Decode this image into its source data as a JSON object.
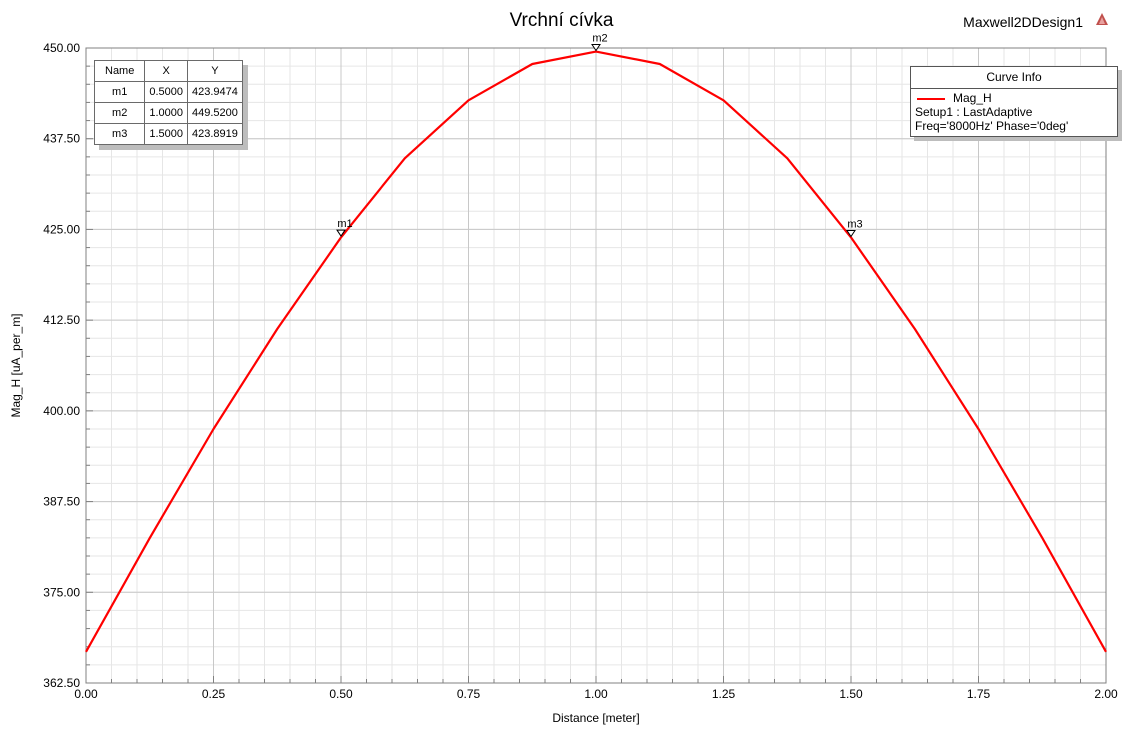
{
  "header": {
    "title": "Vrchní cívka",
    "design_name": "Maxwell2DDesign1"
  },
  "marker_table": {
    "columns": [
      "Name",
      "X",
      "Y"
    ],
    "rows": [
      [
        "m1",
        "0.5000",
        "423.9474"
      ],
      [
        "m2",
        "1.0000",
        "449.5200"
      ],
      [
        "m3",
        "1.5000",
        "423.8919"
      ]
    ]
  },
  "curve_info": {
    "title": "Curve Info",
    "series_name": "Mag_H",
    "setup": "Setup1 : LastAdaptive",
    "params": "Freq='8000Hz' Phase='0deg'"
  },
  "chart_data": {
    "type": "line",
    "title": "Vrchní cívka",
    "xlabel": "Distance [meter]",
    "ylabel": "Mag_H [uA_per_m]",
    "xlim": [
      0,
      2
    ],
    "ylim": [
      362.5,
      450
    ],
    "x_ticks": [
      "0.00",
      "0.25",
      "0.50",
      "0.75",
      "1.00",
      "1.25",
      "1.50",
      "1.75",
      "2.00"
    ],
    "y_ticks": [
      "362.50",
      "375.00",
      "387.50",
      "400.00",
      "412.50",
      "425.00",
      "437.50",
      "450.00"
    ],
    "grid": true,
    "legend": "top-right",
    "series": [
      {
        "name": "Mag_H",
        "color": "#ff0000",
        "x": [
          0,
          0.125,
          0.25,
          0.375,
          0.5,
          0.625,
          0.75,
          0.875,
          1.0,
          1.125,
          1.25,
          1.375,
          1.5,
          1.625,
          1.75,
          1.875,
          2.0
        ],
        "y": [
          366.8,
          382.5,
          397.5,
          411.3,
          423.9,
          434.8,
          442.8,
          447.8,
          449.5,
          447.8,
          442.8,
          434.8,
          423.9,
          411.3,
          397.5,
          382.5,
          366.8
        ]
      }
    ],
    "markers": [
      {
        "label": "m1",
        "x": 0.5,
        "y": 423.9474
      },
      {
        "label": "m2",
        "x": 1.0,
        "y": 449.52
      },
      {
        "label": "m3",
        "x": 1.5,
        "y": 423.8919
      }
    ]
  }
}
